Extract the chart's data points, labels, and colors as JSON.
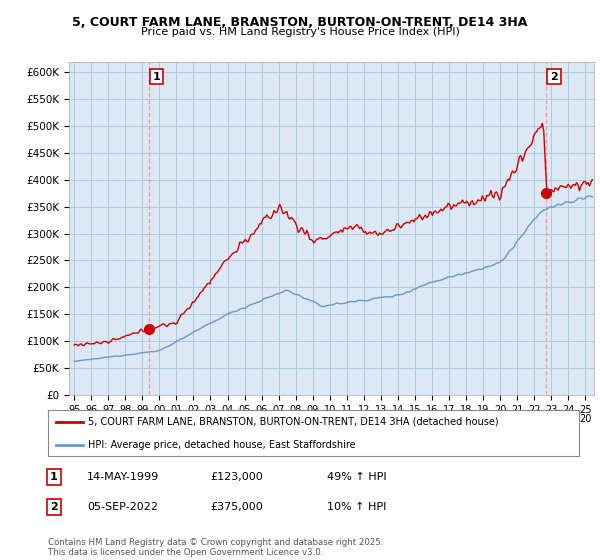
{
  "title_line1": "5, COURT FARM LANE, BRANSTON, BURTON-ON-TRENT, DE14 3HA",
  "title_line2": "Price paid vs. HM Land Registry's House Price Index (HPI)",
  "ylim": [
    0,
    620000
  ],
  "xlim_start": 1994.7,
  "xlim_end": 2025.5,
  "yticks": [
    0,
    50000,
    100000,
    150000,
    200000,
    250000,
    300000,
    350000,
    400000,
    450000,
    500000,
    550000,
    600000
  ],
  "ytick_labels": [
    "£0",
    "£50K",
    "£100K",
    "£150K",
    "£200K",
    "£250K",
    "£300K",
    "£350K",
    "£400K",
    "£450K",
    "£500K",
    "£550K",
    "£600K"
  ],
  "xtick_years": [
    1995,
    1996,
    1997,
    1998,
    1999,
    2000,
    2001,
    2002,
    2003,
    2004,
    2005,
    2006,
    2007,
    2008,
    2009,
    2010,
    2011,
    2012,
    2013,
    2014,
    2015,
    2016,
    2017,
    2018,
    2019,
    2020,
    2021,
    2022,
    2023,
    2024,
    2025
  ],
  "red_line_color": "#cc0000",
  "blue_line_color": "#6699cc",
  "chart_bg_color": "#dce9f5",
  "marker1_x": 1999.37,
  "marker1_y": 123000,
  "marker2_x": 2022.67,
  "marker2_y": 375000,
  "legend_label_red": "5, COURT FARM LANE, BRANSTON, BURTON-ON-TRENT, DE14 3HA (detached house)",
  "legend_label_blue": "HPI: Average price, detached house, East Staffordshire",
  "annotation1_label": "1",
  "annotation1_date": "14-MAY-1999",
  "annotation1_price": "£123,000",
  "annotation1_hpi": "49% ↑ HPI",
  "annotation2_label": "2",
  "annotation2_date": "05-SEP-2022",
  "annotation2_price": "£375,000",
  "annotation2_hpi": "10% ↑ HPI",
  "footer_text": "Contains HM Land Registry data © Crown copyright and database right 2025.\nThis data is licensed under the Open Government Licence v3.0.",
  "background_color": "#ffffff",
  "grid_color": "#aec8e0"
}
